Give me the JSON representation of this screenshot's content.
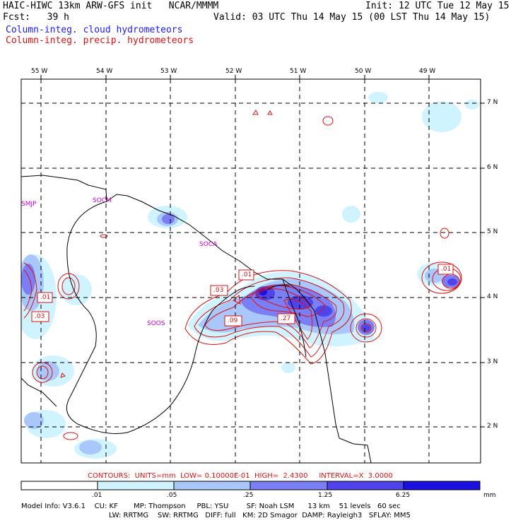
{
  "header": {
    "model_line": "HAIC-HIWC 13km ARW-GFS init   NCAR/MMMM",
    "init_line": "Init: 12 UTC Tue 12 May 15",
    "fcst_line": "Fcst:   39 h",
    "valid_line": "Valid: 03 UTC Thu 14 May 15 (00 LST Thu 14 May 15)",
    "field_cloud": "Column-integ. cloud hydrometeors",
    "field_precip": "Column-integ. precip. hydrometeors"
  },
  "map": {
    "lon_labels": [
      "55 W",
      "54 W",
      "53 W",
      "52 W",
      "51 W",
      "50 W",
      "49 W"
    ],
    "lat_labels": [
      "7 N",
      "6 N",
      "5 N",
      "4 N",
      "3 N",
      "2 N"
    ],
    "station_labels": [
      "SMJP",
      "SOCM",
      "SOCA",
      "SOOS"
    ],
    "contour_labels": [
      ".01",
      ".03",
      ".01",
      ".03",
      ".09",
      ".27",
      ".01"
    ],
    "colors": {
      "cloud_lightest": "#d0f4ff",
      "cloud_light": "#a9c7fa",
      "cloud_mid": "#7b7ff5",
      "cloud_dark": "#4f43ec",
      "cloud_darkest": "#1a10e0",
      "precip": "#e01010",
      "station": "#cc00cc"
    }
  },
  "contour_info": "CONTOURS:  UNITS=mm  LOW= 0.10000E-01  HIGH=  2.4300     INTERVAL=X  3.0000",
  "colorbar": {
    "ticks": [
      ".01",
      ".05",
      ".25",
      "1.25",
      "6.25"
    ],
    "units": "mm",
    "colors": [
      "#ffffff",
      "#d0f4ff",
      "#a9c7fa",
      "#7b7ff5",
      "#4f43ec",
      "#1a10e0"
    ]
  },
  "model_info": {
    "line1": "Model Info: V3.6.1    CU: KF       MP: Thompson     PBL: YSU        SF: Noah LSM      13 km    51 levels   60 sec",
    "line2": "LW: RRTMG    SW: RRTMG   DIFF: full   KM: 2D Smagor  DAMP: Rayleigh3   SFLAY: MM5"
  }
}
